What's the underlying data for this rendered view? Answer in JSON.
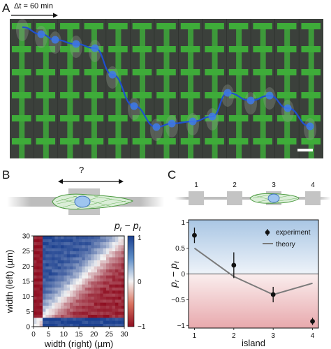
{
  "panelA": {
    "letter": "A",
    "time_label": "Δt = 60 min",
    "trajectory_points": 13
  },
  "panelB": {
    "letter": "B",
    "question": "?",
    "colorbar": {
      "title_p": "p",
      "title_r": "r",
      "title_minus": " − ",
      "title_l": "ℓ",
      "tick_top": "1",
      "tick_mid": "0",
      "tick_bot": "−1"
    },
    "x_ticks": [
      "0",
      "5",
      "10",
      "15",
      "20",
      "25",
      "30"
    ],
    "y_ticks": [
      "0",
      "5",
      "10",
      "15",
      "20",
      "25",
      "30"
    ],
    "xlabel": "width (right) (µm)",
    "ylabel": "width (left) (µm)"
  },
  "panelC": {
    "letter": "C",
    "island_numbers": [
      "1",
      "2",
      "3",
      "4"
    ],
    "y_ticks": [
      "1",
      "0.5",
      "0",
      "−0.5",
      "−1"
    ],
    "x_ticks": [
      "1",
      "2",
      "3",
      "4"
    ],
    "xlabel": "island",
    "ylabel_p": "p",
    "ylabel_r": "r",
    "ylabel_minus": " − ",
    "ylabel_l": "ℓ",
    "legend": {
      "experiment": "experiment",
      "theory": "theory"
    }
  },
  "chart_data": [
    {
      "type": "heatmap",
      "title": "",
      "xlabel": "width (right) (µm)",
      "ylabel": "width (left) (µm)",
      "xlim": [
        0,
        30
      ],
      "ylim": [
        0,
        30
      ],
      "colorbar_range": [
        -1,
        1
      ],
      "colorbar_label": "p_r − p_ℓ",
      "description_values": "positive (blue) when left width small and right width large; negative (red) when left width large and right width small"
    },
    {
      "type": "line",
      "title": "",
      "xlabel": "island",
      "ylabel": "p_r − p_ℓ",
      "ylim": [
        -1.05,
        1.05
      ],
      "x": [
        1,
        2,
        3,
        4
      ],
      "series": [
        {
          "name": "experiment",
          "x": [
            1,
            2,
            3,
            4
          ],
          "values": [
            0.75,
            0.17,
            -0.4,
            -0.92
          ],
          "errors": [
            0.15,
            0.25,
            0.15,
            0.07
          ]
        },
        {
          "name": "theory",
          "x": [
            1,
            2,
            3,
            4
          ],
          "values": [
            0.5,
            -0.05,
            -0.4,
            -0.18
          ]
        }
      ],
      "legend_position": "top-right",
      "background": "blue above 0, red below 0"
    }
  ],
  "colors": {
    "micrograph_bg": "#3a3f3a",
    "pattern_green": "#3fbf3a",
    "trajectory_blue": "#1f4fcf",
    "heat_blue": "#1a3f8f",
    "heat_red": "#a11226",
    "theory_gray": "#7a7a7a"
  }
}
